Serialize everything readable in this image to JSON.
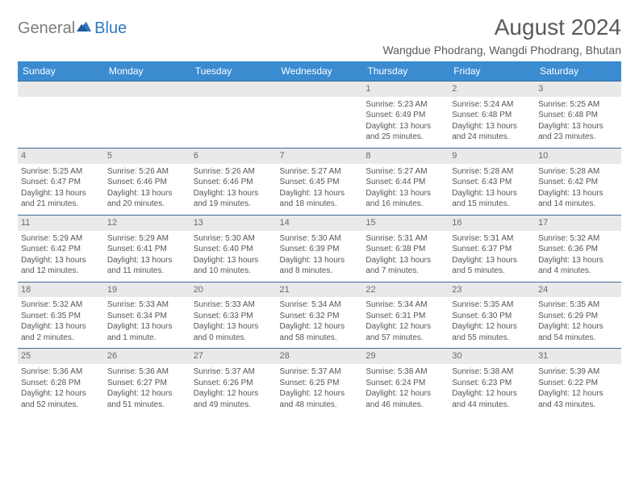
{
  "brand": {
    "text1": "General",
    "text2": "Blue"
  },
  "title": "August 2024",
  "location": "Wangdue Phodrang, Wangdi Phodrang, Bhutan",
  "colors": {
    "header_bg": "#3a8bd0",
    "header_text": "#ffffff",
    "row_border": "#3a6a9a",
    "daynum_bg": "#e9e9e9",
    "daynum_text": "#6a6a6a",
    "body_text": "#555555",
    "title_text": "#5a5a5a",
    "brand_gray": "#7d7d7d",
    "brand_blue": "#2e78c2"
  },
  "dow": [
    "Sunday",
    "Monday",
    "Tuesday",
    "Wednesday",
    "Thursday",
    "Friday",
    "Saturday"
  ],
  "weeks": [
    [
      {
        "n": "",
        "sr": "",
        "ss": "",
        "dl": ""
      },
      {
        "n": "",
        "sr": "",
        "ss": "",
        "dl": ""
      },
      {
        "n": "",
        "sr": "",
        "ss": "",
        "dl": ""
      },
      {
        "n": "",
        "sr": "",
        "ss": "",
        "dl": ""
      },
      {
        "n": "1",
        "sr": "Sunrise: 5:23 AM",
        "ss": "Sunset: 6:49 PM",
        "dl": "Daylight: 13 hours and 25 minutes."
      },
      {
        "n": "2",
        "sr": "Sunrise: 5:24 AM",
        "ss": "Sunset: 6:48 PM",
        "dl": "Daylight: 13 hours and 24 minutes."
      },
      {
        "n": "3",
        "sr": "Sunrise: 5:25 AM",
        "ss": "Sunset: 6:48 PM",
        "dl": "Daylight: 13 hours and 23 minutes."
      }
    ],
    [
      {
        "n": "4",
        "sr": "Sunrise: 5:25 AM",
        "ss": "Sunset: 6:47 PM",
        "dl": "Daylight: 13 hours and 21 minutes."
      },
      {
        "n": "5",
        "sr": "Sunrise: 5:26 AM",
        "ss": "Sunset: 6:46 PM",
        "dl": "Daylight: 13 hours and 20 minutes."
      },
      {
        "n": "6",
        "sr": "Sunrise: 5:26 AM",
        "ss": "Sunset: 6:46 PM",
        "dl": "Daylight: 13 hours and 19 minutes."
      },
      {
        "n": "7",
        "sr": "Sunrise: 5:27 AM",
        "ss": "Sunset: 6:45 PM",
        "dl": "Daylight: 13 hours and 18 minutes."
      },
      {
        "n": "8",
        "sr": "Sunrise: 5:27 AM",
        "ss": "Sunset: 6:44 PM",
        "dl": "Daylight: 13 hours and 16 minutes."
      },
      {
        "n": "9",
        "sr": "Sunrise: 5:28 AM",
        "ss": "Sunset: 6:43 PM",
        "dl": "Daylight: 13 hours and 15 minutes."
      },
      {
        "n": "10",
        "sr": "Sunrise: 5:28 AM",
        "ss": "Sunset: 6:42 PM",
        "dl": "Daylight: 13 hours and 14 minutes."
      }
    ],
    [
      {
        "n": "11",
        "sr": "Sunrise: 5:29 AM",
        "ss": "Sunset: 6:42 PM",
        "dl": "Daylight: 13 hours and 12 minutes."
      },
      {
        "n": "12",
        "sr": "Sunrise: 5:29 AM",
        "ss": "Sunset: 6:41 PM",
        "dl": "Daylight: 13 hours and 11 minutes."
      },
      {
        "n": "13",
        "sr": "Sunrise: 5:30 AM",
        "ss": "Sunset: 6:40 PM",
        "dl": "Daylight: 13 hours and 10 minutes."
      },
      {
        "n": "14",
        "sr": "Sunrise: 5:30 AM",
        "ss": "Sunset: 6:39 PM",
        "dl": "Daylight: 13 hours and 8 minutes."
      },
      {
        "n": "15",
        "sr": "Sunrise: 5:31 AM",
        "ss": "Sunset: 6:38 PM",
        "dl": "Daylight: 13 hours and 7 minutes."
      },
      {
        "n": "16",
        "sr": "Sunrise: 5:31 AM",
        "ss": "Sunset: 6:37 PM",
        "dl": "Daylight: 13 hours and 5 minutes."
      },
      {
        "n": "17",
        "sr": "Sunrise: 5:32 AM",
        "ss": "Sunset: 6:36 PM",
        "dl": "Daylight: 13 hours and 4 minutes."
      }
    ],
    [
      {
        "n": "18",
        "sr": "Sunrise: 5:32 AM",
        "ss": "Sunset: 6:35 PM",
        "dl": "Daylight: 13 hours and 2 minutes."
      },
      {
        "n": "19",
        "sr": "Sunrise: 5:33 AM",
        "ss": "Sunset: 6:34 PM",
        "dl": "Daylight: 13 hours and 1 minute."
      },
      {
        "n": "20",
        "sr": "Sunrise: 5:33 AM",
        "ss": "Sunset: 6:33 PM",
        "dl": "Daylight: 13 hours and 0 minutes."
      },
      {
        "n": "21",
        "sr": "Sunrise: 5:34 AM",
        "ss": "Sunset: 6:32 PM",
        "dl": "Daylight: 12 hours and 58 minutes."
      },
      {
        "n": "22",
        "sr": "Sunrise: 5:34 AM",
        "ss": "Sunset: 6:31 PM",
        "dl": "Daylight: 12 hours and 57 minutes."
      },
      {
        "n": "23",
        "sr": "Sunrise: 5:35 AM",
        "ss": "Sunset: 6:30 PM",
        "dl": "Daylight: 12 hours and 55 minutes."
      },
      {
        "n": "24",
        "sr": "Sunrise: 5:35 AM",
        "ss": "Sunset: 6:29 PM",
        "dl": "Daylight: 12 hours and 54 minutes."
      }
    ],
    [
      {
        "n": "25",
        "sr": "Sunrise: 5:36 AM",
        "ss": "Sunset: 6:28 PM",
        "dl": "Daylight: 12 hours and 52 minutes."
      },
      {
        "n": "26",
        "sr": "Sunrise: 5:36 AM",
        "ss": "Sunset: 6:27 PM",
        "dl": "Daylight: 12 hours and 51 minutes."
      },
      {
        "n": "27",
        "sr": "Sunrise: 5:37 AM",
        "ss": "Sunset: 6:26 PM",
        "dl": "Daylight: 12 hours and 49 minutes."
      },
      {
        "n": "28",
        "sr": "Sunrise: 5:37 AM",
        "ss": "Sunset: 6:25 PM",
        "dl": "Daylight: 12 hours and 48 minutes."
      },
      {
        "n": "29",
        "sr": "Sunrise: 5:38 AM",
        "ss": "Sunset: 6:24 PM",
        "dl": "Daylight: 12 hours and 46 minutes."
      },
      {
        "n": "30",
        "sr": "Sunrise: 5:38 AM",
        "ss": "Sunset: 6:23 PM",
        "dl": "Daylight: 12 hours and 44 minutes."
      },
      {
        "n": "31",
        "sr": "Sunrise: 5:39 AM",
        "ss": "Sunset: 6:22 PM",
        "dl": "Daylight: 12 hours and 43 minutes."
      }
    ]
  ]
}
